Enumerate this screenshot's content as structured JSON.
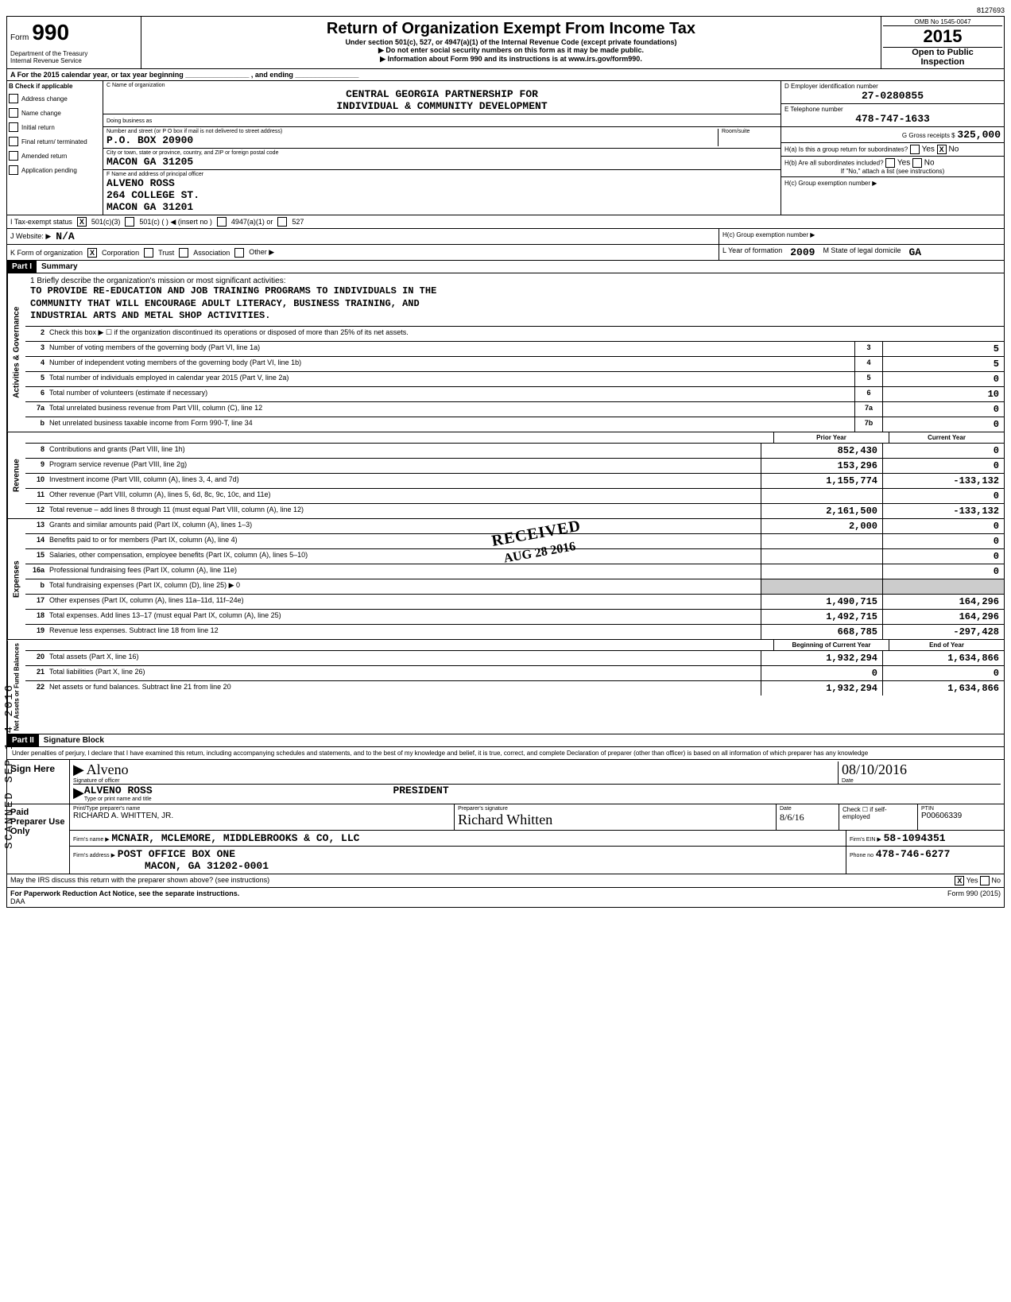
{
  "page_num": "8127693",
  "header": {
    "form_prefix": "Form",
    "form_number": "990",
    "dept1": "Department of the Treasury",
    "dept2": "Internal Revenue Service",
    "title": "Return of Organization Exempt From Income Tax",
    "subtitle": "Under section 501(c), 527, or 4947(a)(1) of the Internal Revenue Code (except private foundations)",
    "pointer1": "▶ Do not enter social security numbers on this form as it may be made public.",
    "pointer2": "▶ Information about Form 990 and its instructions is at www.irs.gov/form990.",
    "omb": "OMB No 1545-0047",
    "year": "2015",
    "open1": "Open to Public",
    "open2": "Inspection"
  },
  "row_a": "A   For the 2015 calendar year, or tax year beginning ________________ , and ending ________________",
  "section_b": {
    "header": "B  Check if applicable",
    "items": [
      "Address change",
      "Name change",
      "Initial return",
      "Final return/ terminated",
      "Amended return",
      "Application pending"
    ]
  },
  "org": {
    "name_label": "C  Name of organization",
    "name1": "CENTRAL GEORGIA PARTNERSHIP FOR",
    "name2": "INDIVIDUAL & COMMUNITY DEVELOPMENT",
    "dba_label": "Doing business as",
    "addr_label": "Number and street (or P O  box if mail is not delivered to street address)",
    "addr": "P.O. BOX 20900",
    "city_label": "City or town, state or province, country, and ZIP or foreign postal code",
    "city": "MACON                         GA 31205",
    "officer_label": "F  Name and address of principal officer",
    "officer_name": "ALVENO ROSS",
    "officer_addr": "264 COLLEGE ST.",
    "officer_city": "MACON                    GA 31201",
    "room_label": "Room/suite"
  },
  "right": {
    "ein_label": "D Employer identification number",
    "ein": "27-0280855",
    "tel_label": "E Telephone number",
    "tel": "478-747-1633",
    "gross_label": "G Gross receipts $",
    "gross": "325,000",
    "ha_label": "H(a) Is this a group return for subordinates?",
    "ha_yes": "Yes",
    "ha_no": "No",
    "hb_label": "H(b) Are all subordinates included?",
    "hb_note": "If \"No,\" attach a list (see instructions)",
    "hc_label": "H(c) Group exemption number ▶"
  },
  "row_i": {
    "label": "I     Tax-exempt status",
    "opt1": "501(c)(3)",
    "opt2": "501(c)  (       ) ◀ (insert no )",
    "opt3": "4947(a)(1) or",
    "opt4": "527"
  },
  "row_j": {
    "label": "J    Website: ▶",
    "value": "N/A"
  },
  "row_k": {
    "label": "K   Form of organization",
    "opt1": "Corporation",
    "opt2": "Trust",
    "opt3": "Association",
    "opt4": "Other ▶",
    "year_label": "L  Year of formation",
    "year": "2009",
    "state_label": "M  State of legal domicile",
    "state": "GA"
  },
  "part1": {
    "header": "Part I",
    "title": "Summary"
  },
  "mission": {
    "intro": "1  Briefly describe the organization's mission or most significant activities:",
    "line1": "TO PROVIDE RE-EDUCATION AND JOB TRAINING PROGRAMS TO INDIVIDUALS IN THE",
    "line2": "COMMUNITY THAT WILL ENCOURAGE ADULT LITERACY, BUSINESS TRAINING, AND",
    "line3": "INDUSTRIAL ARTS AND METAL SHOP ACTIVITIES."
  },
  "side_labels": {
    "governance": "Activities & Governance",
    "revenue": "Revenue",
    "expenses": "Expenses",
    "net": "Net Assets or Fund Balances"
  },
  "governance_lines": [
    {
      "num": "2",
      "desc": "Check this box ▶ ☐  if the organization discontinued its operations or disposed of more than 25% of its net assets."
    },
    {
      "num": "3",
      "desc": "Number of voting members of the governing body (Part VI, line 1a)",
      "box": "3",
      "val": "5"
    },
    {
      "num": "4",
      "desc": "Number of independent voting members of the governing body (Part VI, line 1b)",
      "box": "4",
      "val": "5"
    },
    {
      "num": "5",
      "desc": "Total number of individuals employed in calendar year 2015 (Part V, line 2a)",
      "box": "5",
      "val": "0"
    },
    {
      "num": "6",
      "desc": "Total number of volunteers (estimate if necessary)",
      "box": "6",
      "val": "10"
    },
    {
      "num": "7a",
      "desc": "Total unrelated business revenue from Part VIII, column (C), line 12",
      "box": "7a",
      "val": "0"
    },
    {
      "num": "b",
      "desc": "Net unrelated business taxable income from Form 990-T, line 34",
      "box": "7b",
      "val": "0"
    }
  ],
  "col_headers": {
    "prior": "Prior Year",
    "current": "Current Year"
  },
  "revenue_lines": [
    {
      "num": "8",
      "desc": "Contributions and grants (Part VIII, line 1h)",
      "prior": "852,430",
      "current": "0"
    },
    {
      "num": "9",
      "desc": "Program service revenue (Part VIII, line 2g)",
      "prior": "153,296",
      "current": "0"
    },
    {
      "num": "10",
      "desc": "Investment income (Part VIII, column (A), lines 3, 4, and 7d)",
      "prior": "1,155,774",
      "current": "-133,132"
    },
    {
      "num": "11",
      "desc": "Other revenue (Part VIII, column (A), lines 5, 6d, 8c, 9c, 10c, and 11e)",
      "prior": "",
      "current": "0"
    },
    {
      "num": "12",
      "desc": "Total revenue – add lines 8 through 11 (must equal Part VIII, column (A), line 12)",
      "prior": "2,161,500",
      "current": "-133,132"
    }
  ],
  "expense_lines": [
    {
      "num": "13",
      "desc": "Grants and similar amounts paid (Part IX, column (A), lines 1–3)",
      "prior": "2,000",
      "current": "0"
    },
    {
      "num": "14",
      "desc": "Benefits paid to or for members (Part IX, column (A), line 4)",
      "prior": "",
      "current": "0"
    },
    {
      "num": "15",
      "desc": "Salaries, other compensation, employee benefits (Part IX, column (A), lines 5–10)",
      "prior": "",
      "current": "0"
    },
    {
      "num": "16a",
      "desc": "Professional fundraising fees (Part IX, column (A), line 11e)",
      "prior": "",
      "current": "0"
    },
    {
      "num": "b",
      "desc": "Total fundraising expenses (Part IX, column (D), line 25) ▶                                            0",
      "grey": true
    },
    {
      "num": "17",
      "desc": "Other expenses (Part IX, column (A), lines 11a–11d, 11f–24e)",
      "prior": "1,490,715",
      "current": "164,296"
    },
    {
      "num": "18",
      "desc": "Total expenses. Add lines 13–17 (must equal Part IX, column (A), line 25)",
      "prior": "1,492,715",
      "current": "164,296"
    },
    {
      "num": "19",
      "desc": "Revenue less expenses. Subtract line 18 from line 12",
      "prior": "668,785",
      "current": "-297,428"
    }
  ],
  "net_headers": {
    "begin": "Beginning of Current Year",
    "end": "End of Year"
  },
  "net_lines": [
    {
      "num": "20",
      "desc": "Total assets (Part X, line 16)",
      "prior": "1,932,294",
      "current": "1,634,866"
    },
    {
      "num": "21",
      "desc": "Total liabilities (Part X, line 26)",
      "prior": "0",
      "current": "0"
    },
    {
      "num": "22",
      "desc": "Net assets or fund balances. Subtract line 21 from line 20",
      "prior": "1,932,294",
      "current": "1,634,866"
    }
  ],
  "part2": {
    "header": "Part II",
    "title": "Signature Block",
    "penalty": "Under penalties of perjury, I declare that I have examined this return, including accompanying schedules and statements, and to the best of my knowledge and belief, it is true, correct, and complete  Declaration of preparer (other than officer) is based on all information of which preparer has any knowledge"
  },
  "sign": {
    "label": "Sign Here",
    "sig_label": "Signature of officer",
    "sig": "Alveno",
    "date_label": "Date",
    "date": "08/10/2016",
    "name_label": "Type or print name and title",
    "name": "ALVENO ROSS",
    "title": "PRESIDENT"
  },
  "preparer": {
    "label": "Paid Preparer Use Only",
    "name_label": "Print/Type preparer's name",
    "name": "RICHARD A. WHITTEN, JR.",
    "sig_label": "Preparer's signature",
    "date_label": "Date",
    "date": "8/6/16",
    "check_label": "Check ☐ if self-employed",
    "ptin_label": "PTIN",
    "ptin": "P00606339",
    "firm_name_label": "Firm's name    ▶",
    "firm_name": "MCNAIR, MCLEMORE, MIDDLEBROOKS & CO, LLC",
    "firm_ein_label": "Firm's EIN ▶",
    "firm_ein": "58-1094351",
    "firm_addr_label": "Firm's address  ▶",
    "firm_addr1": "POST OFFICE BOX ONE",
    "firm_addr2": "MACON, GA   31202-0001",
    "phone_label": "Phone no",
    "phone": "478-746-6277"
  },
  "footer": {
    "discuss": "May the IRS discuss this return with the preparer shown above? (see instructions)",
    "yes": "Yes",
    "no": "No",
    "paperwork": "For Paperwork Reduction Act Notice, see the separate instructions.",
    "daa": "DAA",
    "form": "Form 990 (2015)"
  },
  "stamps": {
    "received": "RECEIVED",
    "date": "AUG 28 2016",
    "scanned": "SCANNED  SEP 1 4 2016"
  }
}
